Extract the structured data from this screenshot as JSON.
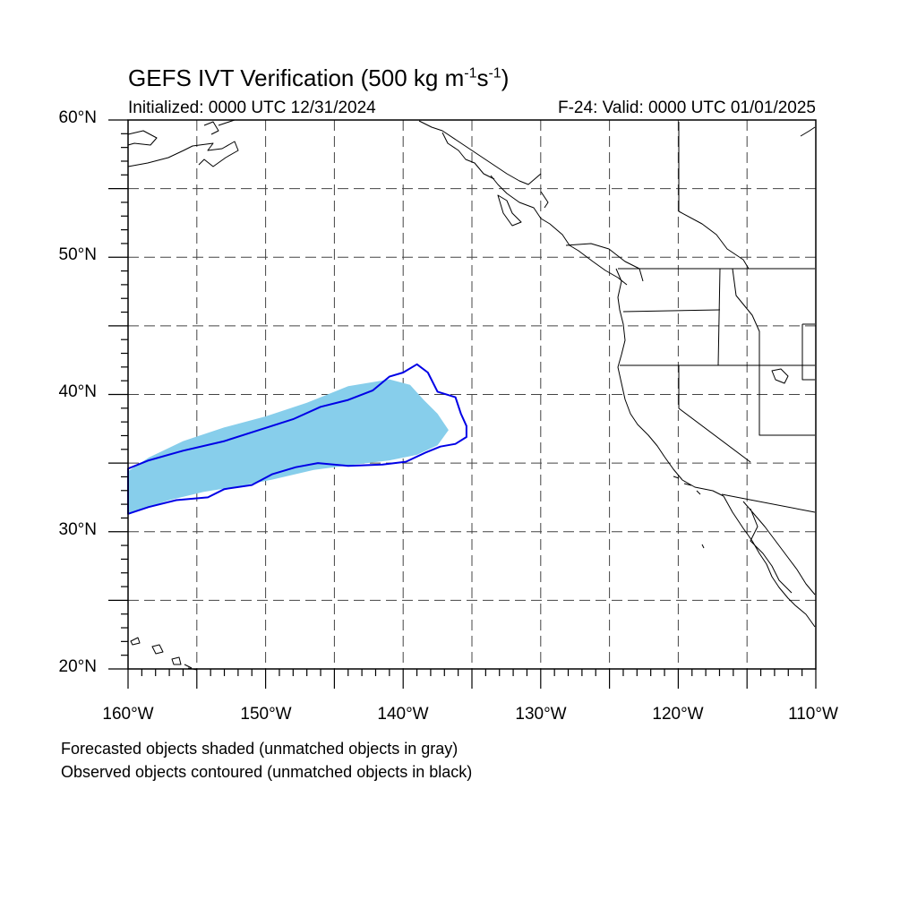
{
  "title": {
    "main": "GEFS IVT Verification (500 kg m",
    "exp1": "-1",
    "s": "s",
    "exp2": "-1",
    "close": ")"
  },
  "init_label": "Initialized: 0000 UTC 12/31/2024",
  "valid_label": "F-24: Valid: 0000 UTC 01/01/2025",
  "lat_labels": [
    "60°N",
    "50°N",
    "40°N",
    "30°N",
    "20°N"
  ],
  "lon_labels": [
    "160°W",
    "150°W",
    "140°W",
    "130°W",
    "120°W",
    "110°W"
  ],
  "footnotes": {
    "forecast": "Forecasted objects shaded (unmatched objects in gray)",
    "observed": "Observed objects contoured (unmatched objects in black)"
  },
  "colors": {
    "forecast_fill": "#87ceeb",
    "observed_contour": "#0000e6",
    "coast": "#000000",
    "grid": "#444444"
  },
  "chart_data": {
    "type": "map",
    "projection": "cylindrical equidistant",
    "lon_range": [
      -160,
      -110
    ],
    "lat_range": [
      20,
      60
    ],
    "grid_spacing_deg": 5,
    "forecast_object": {
      "label": "forecast IVT object (matched)",
      "outline_lonlat": [
        [
          -160,
          34.4
        ],
        [
          -158.5,
          35.4
        ],
        [
          -156,
          36.6
        ],
        [
          -153,
          37.6
        ],
        [
          -150,
          38.4
        ],
        [
          -147,
          39.4
        ],
        [
          -144,
          40.6
        ],
        [
          -141,
          41.1
        ],
        [
          -139.5,
          40.7
        ],
        [
          -138.5,
          39.6
        ],
        [
          -137.5,
          38.6
        ],
        [
          -136.7,
          37.4
        ],
        [
          -137.5,
          36.3
        ],
        [
          -139,
          35.6
        ],
        [
          -141,
          35.2
        ],
        [
          -143.5,
          34.9
        ],
        [
          -146.5,
          34.5
        ],
        [
          -149.5,
          33.8
        ],
        [
          -152,
          33.3
        ],
        [
          -154.5,
          32.9
        ],
        [
          -157,
          32.3
        ],
        [
          -158.5,
          31.8
        ],
        [
          -160,
          31.3
        ]
      ]
    },
    "observed_object": {
      "label": "observed IVT object (matched)",
      "outline_lonlat": [
        [
          -160,
          34.6
        ],
        [
          -158.5,
          35.2
        ],
        [
          -156,
          35.9
        ],
        [
          -153,
          36.6
        ],
        [
          -150.5,
          37.4
        ],
        [
          -148,
          38.2
        ],
        [
          -146,
          39.1
        ],
        [
          -144,
          39.6
        ],
        [
          -142.2,
          40.3
        ],
        [
          -141,
          41.3
        ],
        [
          -140,
          41.6
        ],
        [
          -139,
          42.2
        ],
        [
          -138.2,
          41.6
        ],
        [
          -137.5,
          40.2
        ],
        [
          -136.2,
          39.8
        ],
        [
          -135.8,
          38.6
        ],
        [
          -135.4,
          37.7
        ],
        [
          -135.4,
          36.9
        ],
        [
          -136.2,
          36.4
        ],
        [
          -137.3,
          36.2
        ],
        [
          -138.3,
          35.8
        ],
        [
          -139.8,
          35.1
        ],
        [
          -141.5,
          34.9
        ],
        [
          -144,
          34.8
        ],
        [
          -146.2,
          35.0
        ],
        [
          -147.8,
          34.7
        ],
        [
          -149.5,
          34.2
        ],
        [
          -151,
          33.4
        ],
        [
          -153,
          33.1
        ],
        [
          -154.2,
          32.5
        ],
        [
          -156.5,
          32.3
        ],
        [
          -158.5,
          31.8
        ],
        [
          -160,
          31.3
        ]
      ]
    }
  }
}
